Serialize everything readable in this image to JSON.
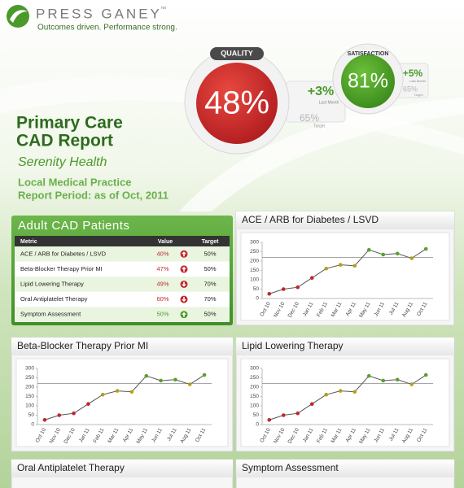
{
  "header": {
    "brand": "PRESS GANEY",
    "trademark": "™",
    "tagline": "Outcomes driven. Performance strong."
  },
  "badges": {
    "quality": {
      "label": "QUALITY",
      "value": "48%",
      "change": "+3%",
      "change_label": "Last Month",
      "target": "65%",
      "target_label": "Target"
    },
    "satisfaction": {
      "label": "SATISFACTION",
      "value": "81%",
      "change": "+5%",
      "change_label": "Last Month",
      "target": "65%",
      "target_label": "Target"
    }
  },
  "report": {
    "line1": "Primary Care",
    "line2": "CAD Report",
    "organization": "Serenity Health",
    "practice": "Local Medical Practice",
    "period": "Report Period: as of Oct, 2011"
  },
  "table": {
    "title": "Adult CAD Patients",
    "columns": [
      "Metric",
      "Value",
      "Target"
    ],
    "rows": [
      {
        "metric": "ACE / ARB for Diabetes / LSVD",
        "value": "40%",
        "trend": "up",
        "target": "50%",
        "color": "#c0272d"
      },
      {
        "metric": "Beta-Blocker Therapy Prior MI",
        "value": "47%",
        "trend": "up",
        "target": "50%",
        "color": "#c0272d"
      },
      {
        "metric": "Lipid Lowering Therapy",
        "value": "49%",
        "trend": "down",
        "target": "70%",
        "color": "#c0272d"
      },
      {
        "metric": "Oral Antiplatelet Therapy",
        "value": "60%",
        "trend": "down",
        "target": "70%",
        "color": "#c0272d"
      },
      {
        "metric": "Symptom Assessment",
        "value": "50%",
        "trend": "up",
        "target": "50%",
        "color": "#4a9a2a"
      }
    ]
  },
  "chart_data": [
    {
      "type": "line",
      "title": "ACE / ARB for Diabetes / LSVD",
      "categories": [
        "Oct 10",
        "Nov 10",
        "Dec 10",
        "Jan 11",
        "Feb 11",
        "Mar 11",
        "Apr 11",
        "May 11",
        "Jun 11",
        "Jul 11",
        "Aug 11",
        "Oct 11"
      ],
      "values": [
        25,
        50,
        60,
        110,
        160,
        180,
        175,
        260,
        235,
        240,
        215,
        265
      ],
      "point_colors": [
        "#c0272d",
        "#c0272d",
        "#c0272d",
        "#c0272d",
        "#b59f1c",
        "#b59f1c",
        "#b59f1c",
        "#5aa02c",
        "#5aa02c",
        "#5aa02c",
        "#b59f1c",
        "#5aa02c"
      ],
      "target": 220,
      "color": "#555555",
      "ylim": [
        0,
        300
      ],
      "yticks": [
        0,
        50,
        100,
        150,
        200,
        250,
        300
      ]
    },
    {
      "type": "line",
      "title": "Beta-Blocker Therapy Prior MI",
      "categories": [
        "Oct 10",
        "Nov 10",
        "Dec 10",
        "Jan 11",
        "Feb 11",
        "Mar 11",
        "Apr 11",
        "May 11",
        "Jun 11",
        "Jul 11",
        "Aug 11",
        "Oct 11"
      ],
      "values": [
        25,
        50,
        60,
        110,
        160,
        180,
        175,
        260,
        235,
        240,
        215,
        265
      ],
      "point_colors": [
        "#c0272d",
        "#c0272d",
        "#c0272d",
        "#c0272d",
        "#b59f1c",
        "#b59f1c",
        "#b59f1c",
        "#5aa02c",
        "#5aa02c",
        "#5aa02c",
        "#b59f1c",
        "#5aa02c"
      ],
      "target": 220,
      "color": "#555555",
      "ylim": [
        0,
        300
      ],
      "yticks": [
        0,
        50,
        100,
        150,
        200,
        250,
        300
      ]
    },
    {
      "type": "line",
      "title": "Lipid Lowering Therapy",
      "categories": [
        "Oct 10",
        "Nov 10",
        "Dec 10",
        "Jan 11",
        "Feb 11",
        "Mar 11",
        "Apr 11",
        "May 11",
        "Jun 11",
        "Jul 11",
        "Aug 11",
        "Oct 11"
      ],
      "values": [
        25,
        50,
        60,
        110,
        160,
        180,
        175,
        260,
        235,
        240,
        215,
        265
      ],
      "point_colors": [
        "#c0272d",
        "#c0272d",
        "#c0272d",
        "#c0272d",
        "#b59f1c",
        "#b59f1c",
        "#b59f1c",
        "#5aa02c",
        "#5aa02c",
        "#5aa02c",
        "#b59f1c",
        "#5aa02c"
      ],
      "target": 220,
      "color": "#555555",
      "ylim": [
        0,
        300
      ],
      "yticks": [
        0,
        50,
        100,
        150,
        200,
        250,
        300
      ]
    },
    {
      "type": "line",
      "title": "Oral Antiplatelet Therapy"
    },
    {
      "type": "line",
      "title": "Symptom Assessment"
    }
  ]
}
